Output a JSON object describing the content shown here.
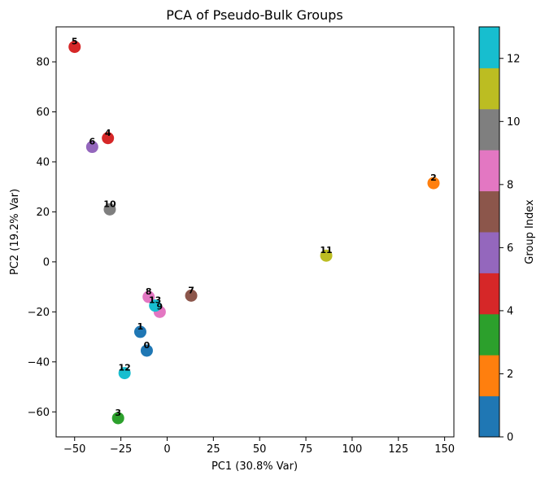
{
  "chart_data": {
    "type": "scatter",
    "title": "PCA of Pseudo-Bulk Groups",
    "xlabel": "PC1 (30.8% Var)",
    "ylabel": "PC2 (19.2% Var)",
    "xlim": [
      -60,
      155
    ],
    "ylim": [
      -70,
      94
    ],
    "x_ticks": [
      -50,
      -25,
      0,
      25,
      50,
      75,
      100,
      125,
      150
    ],
    "y_ticks": [
      -60,
      -40,
      -20,
      0,
      20,
      40,
      60,
      80
    ],
    "grid": false,
    "points": [
      {
        "label": "0",
        "group": 0,
        "x": -11,
        "y": -35.5
      },
      {
        "label": "1",
        "group": 1,
        "x": -14.5,
        "y": -28
      },
      {
        "label": "2",
        "group": 2,
        "x": 144,
        "y": 31.5
      },
      {
        "label": "3",
        "group": 3,
        "x": -26.5,
        "y": -62.5
      },
      {
        "label": "4",
        "group": 4,
        "x": -32,
        "y": 49.5
      },
      {
        "label": "5",
        "group": 5,
        "x": -50,
        "y": 86
      },
      {
        "label": "6",
        "group": 6,
        "x": -40.5,
        "y": 46
      },
      {
        "label": "7",
        "group": 7,
        "x": 13,
        "y": -13.5
      },
      {
        "label": "8",
        "group": 8,
        "x": -10,
        "y": -14
      },
      {
        "label": "9",
        "group": 9,
        "x": -4,
        "y": -20
      },
      {
        "label": "10",
        "group": 10,
        "x": -31,
        "y": 21
      },
      {
        "label": "11",
        "group": 11,
        "x": 86,
        "y": 2.5
      },
      {
        "label": "12",
        "group": 12,
        "x": -23,
        "y": -44.5
      },
      {
        "label": "13",
        "group": 13,
        "x": -6.5,
        "y": -17.5
      }
    ],
    "colorbar": {
      "label": "Group Index",
      "range": [
        0,
        13
      ],
      "ticks": [
        0,
        2,
        4,
        6,
        8,
        10,
        12
      ],
      "colors": [
        "#1f77b4",
        "#ff7f0e",
        "#2ca02c",
        "#d62728",
        "#9467bd",
        "#8c564b",
        "#e377c2",
        "#7f7f7f",
        "#bcbd22",
        "#17becf"
      ]
    }
  }
}
